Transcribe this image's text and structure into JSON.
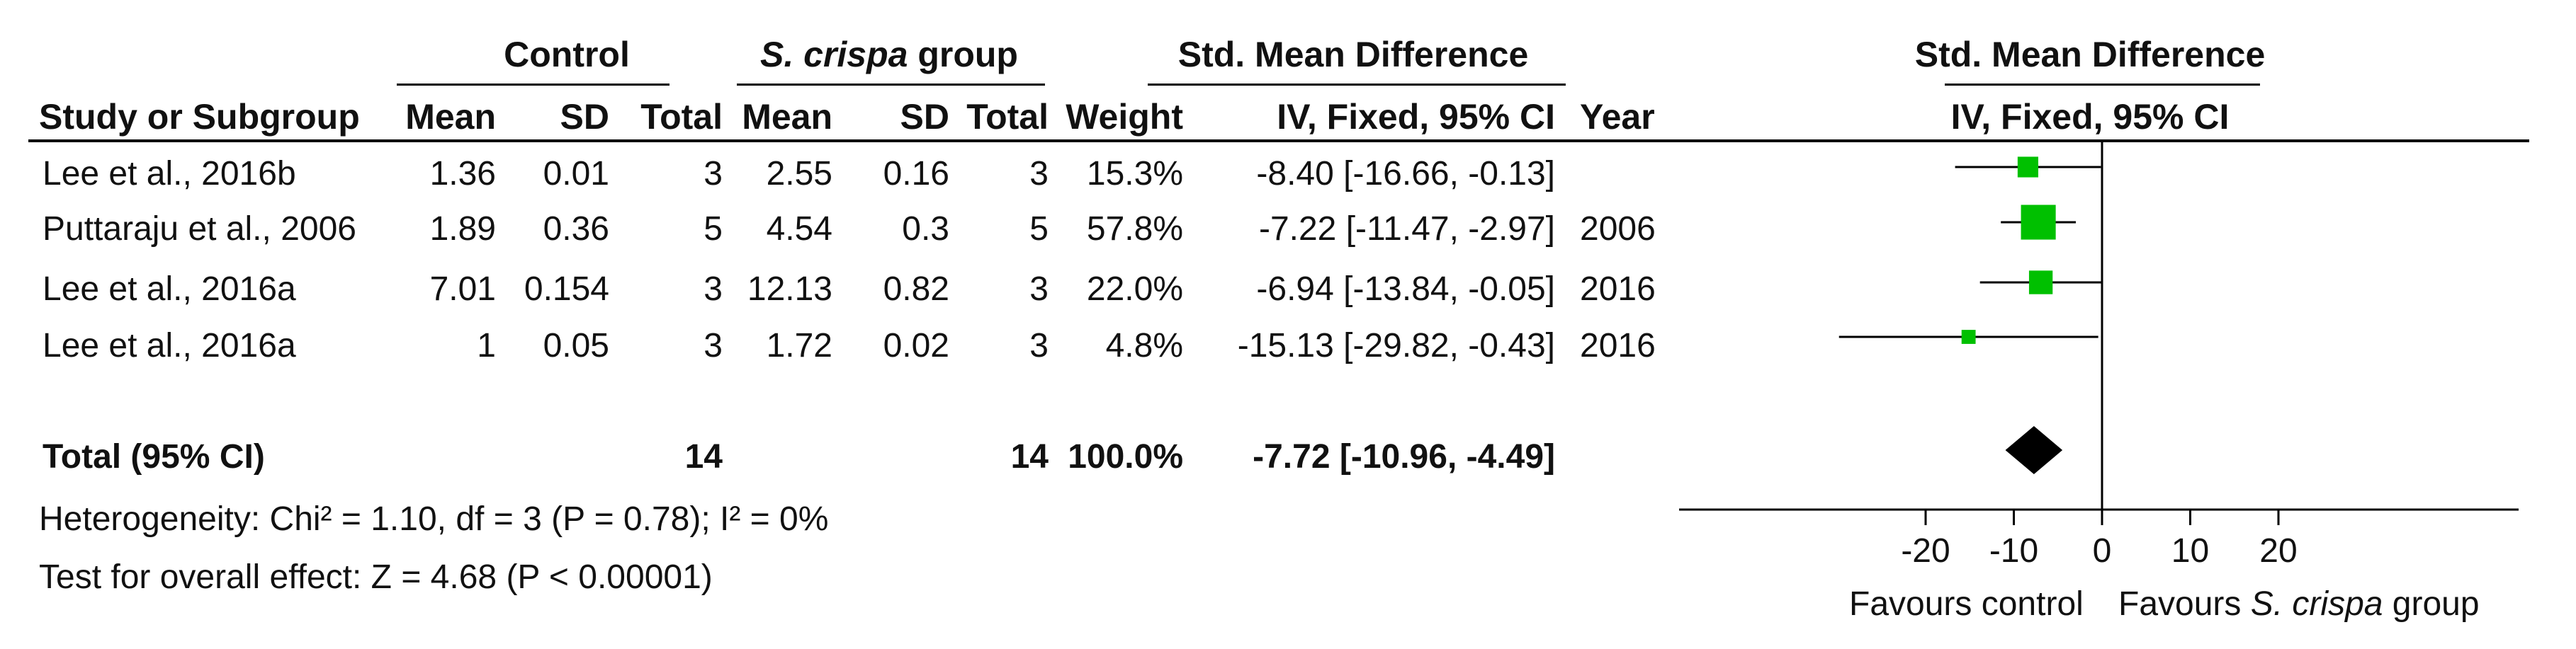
{
  "headers": {
    "control_group": "Control",
    "treatment_group_italic": "S. crispa",
    "treatment_group_suffix": " group",
    "effect_measure": "Std. Mean Difference",
    "study_col": "Study or Subgroup",
    "mean": "Mean",
    "sd": "SD",
    "total": "Total",
    "weight": "Weight",
    "method": "IV, Fixed, 95% CI",
    "year": "Year",
    "plot_title": "Std. Mean Difference",
    "plot_method": "IV, Fixed, 95% CI"
  },
  "studies": [
    {
      "name": "Lee et al., 2016b",
      "c_mean": "1.36",
      "c_sd": "0.01",
      "c_total": "3",
      "t_mean": "2.55",
      "t_sd": "0.16",
      "t_total": "3",
      "weight": "15.3%",
      "ci_text": "-8.40 [-16.66, -0.13]",
      "year": ""
    },
    {
      "name": "Puttaraju et al., 2006",
      "c_mean": "1.89",
      "c_sd": "0.36",
      "c_total": "5",
      "t_mean": "4.54",
      "t_sd": "0.3",
      "t_total": "5",
      "weight": "57.8%",
      "ci_text": "-7.22 [-11.47, -2.97]",
      "year": "2006"
    },
    {
      "name": "Lee et al., 2016a",
      "c_mean": "7.01",
      "c_sd": "0.154",
      "c_total": "3",
      "t_mean": "12.13",
      "t_sd": "0.82",
      "t_total": "3",
      "weight": "22.0%",
      "ci_text": "-6.94 [-13.84, -0.05]",
      "year": "2016"
    },
    {
      "name": "Lee et al., 2016a",
      "c_mean": "1",
      "c_sd": "0.05",
      "c_total": "3",
      "t_mean": "1.72",
      "t_sd": "0.02",
      "t_total": "3",
      "weight": "4.8%",
      "ci_text": "-15.13 [-29.82, -0.43]",
      "year": "2016"
    }
  ],
  "total": {
    "label": "Total (95% CI)",
    "c_total": "14",
    "t_total": "14",
    "weight": "100.0%",
    "ci_text": "-7.72 [-10.96, -4.49]"
  },
  "footnotes": {
    "heterogeneity": "Heterogeneity: Chi² = 1.10, df = 3 (P = 0.78); I² = 0%",
    "overall": "Test for overall effect: Z = 4.68 (P < 0.00001)"
  },
  "axis": {
    "favours_left": "Favours control",
    "favours_right_italic": "S. crispa",
    "favours_right_prefix": "Favours ",
    "favours_right_suffix": " group"
  },
  "chart_data": {
    "type": "scatter",
    "xlim": [
      -30,
      30
    ],
    "ticks": [
      -20,
      -10,
      0,
      10,
      20
    ],
    "marker_color": "#00c000",
    "series": [
      {
        "est": -8.4,
        "lo": -16.66,
        "hi": -0.13,
        "weight": 15.3
      },
      {
        "est": -7.22,
        "lo": -11.47,
        "hi": -2.97,
        "weight": 57.8
      },
      {
        "est": -6.94,
        "lo": -13.84,
        "hi": -0.05,
        "weight": 22.0
      },
      {
        "est": -15.13,
        "lo": -29.82,
        "hi": -0.43,
        "weight": 4.8
      }
    ],
    "pooled": {
      "est": -7.72,
      "lo": -10.96,
      "hi": -4.49
    }
  }
}
